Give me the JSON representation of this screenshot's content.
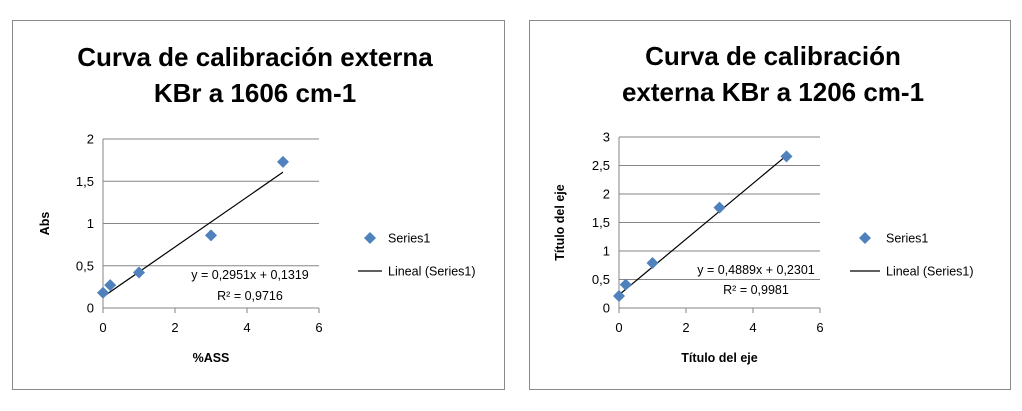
{
  "chart_data": [
    {
      "type": "scatter",
      "title_lines": [
        "Curva de calibración externa",
        "KBr a 1606 cm-1"
      ],
      "xlabel": "%ASS",
      "ylabel": "Abs",
      "xlim": [
        0,
        6
      ],
      "ylim": [
        0,
        2
      ],
      "x_ticks": [
        "0",
        "2",
        "4",
        "6"
      ],
      "y_ticks": [
        "0",
        "0,5",
        "1",
        "1,5",
        "2"
      ],
      "grid": "horizontal",
      "legend_position": "right",
      "series": [
        {
          "name": "Series1",
          "x": [
            0,
            0.2,
            1,
            3,
            5
          ],
          "y": [
            0.18,
            0.27,
            0.42,
            0.86,
            1.73
          ]
        }
      ],
      "trendline": {
        "name": "Lineal (Series1)",
        "slope": 0.2951,
        "intercept": 0.1319,
        "x_range": [
          0,
          5
        ]
      },
      "equation": "y = 0,2951x + 0,1319",
      "r2": "R² = 0,9716",
      "colors": {
        "marker": "#4f81bd",
        "line": "#000000",
        "grid": "#868686"
      }
    },
    {
      "type": "scatter",
      "title_lines": [
        "Curva de calibración",
        "externa KBr a 1206 cm-1"
      ],
      "xlabel": "Título del eje",
      "ylabel": "Título del eje",
      "xlim": [
        0,
        6
      ],
      "ylim": [
        0,
        3
      ],
      "x_ticks": [
        "0",
        "2",
        "4",
        "6"
      ],
      "y_ticks": [
        "0",
        "0,5",
        "1",
        "1,5",
        "2",
        "2,5",
        "3"
      ],
      "grid": "horizontal",
      "legend_position": "right",
      "series": [
        {
          "name": "Series1",
          "x": [
            0,
            0.2,
            1,
            3,
            5
          ],
          "y": [
            0.21,
            0.41,
            0.79,
            1.76,
            2.66
          ]
        }
      ],
      "trendline": {
        "name": "Lineal (Series1)",
        "slope": 0.4889,
        "intercept": 0.2301,
        "x_range": [
          0,
          5
        ]
      },
      "equation": "y = 0,4889x + 0,2301",
      "r2": "R² = 0,9981",
      "colors": {
        "marker": "#4f81bd",
        "line": "#000000",
        "grid": "#868686"
      }
    }
  ]
}
